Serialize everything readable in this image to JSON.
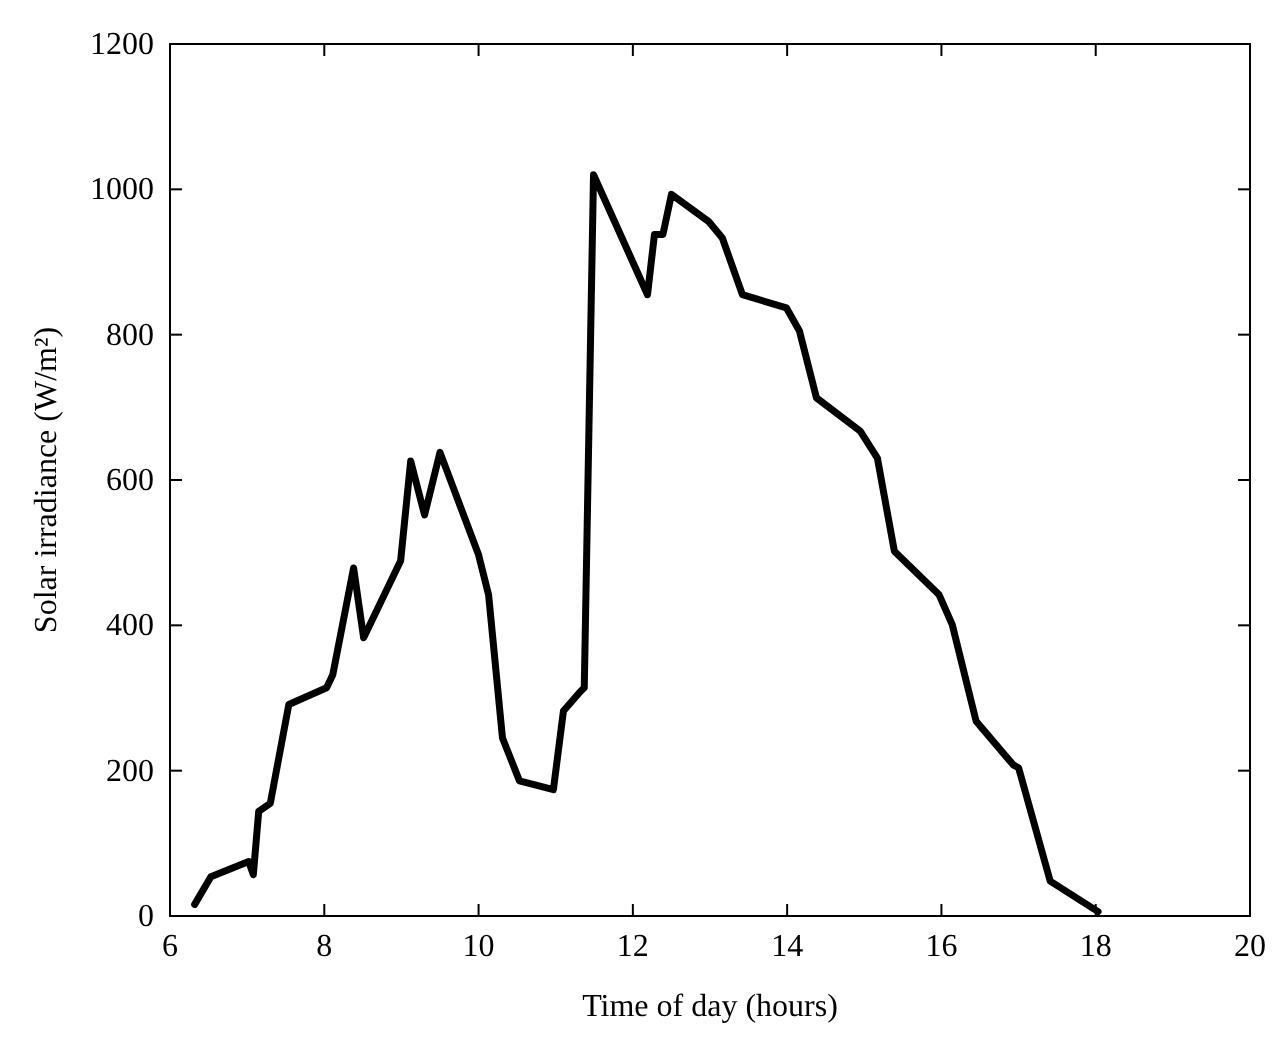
{
  "chart_data": {
    "type": "line",
    "xlabel": "Time of day (hours)",
    "ylabel": "Solar irradiance (W/m²)",
    "xlim": [
      6,
      20
    ],
    "ylim": [
      0,
      1200
    ],
    "xticks": [
      6,
      8,
      10,
      12,
      14,
      16,
      18,
      20
    ],
    "yticks": [
      0,
      200,
      400,
      600,
      800,
      1000,
      1200
    ],
    "grid": false,
    "marker": "none",
    "line_style": "solid",
    "series": [
      {
        "color": "#000000",
        "x": [
          6.32,
          6.53,
          7.02,
          7.08,
          7.15,
          7.3,
          7.54,
          8.03,
          8.11,
          8.38,
          8.51,
          8.99,
          9.12,
          9.3,
          9.5,
          10.0,
          10.13,
          10.31,
          10.53,
          10.97,
          11.1,
          11.32,
          11.37,
          11.49,
          12.19,
          12.28,
          12.39,
          12.5,
          12.98,
          13.16,
          13.42,
          13.99,
          14.16,
          14.38,
          14.95,
          15.17,
          15.39,
          15.97,
          16.14,
          16.45,
          16.93,
          17.0,
          17.41,
          18.03
        ],
        "values": [
          16,
          54,
          75,
          57,
          144,
          155,
          291,
          314,
          332,
          479,
          383,
          489,
          626,
          552,
          638,
          497,
          442,
          245,
          186,
          174,
          282,
          309,
          314,
          1020,
          855,
          938,
          938,
          993,
          956,
          933,
          855,
          837,
          805,
          713,
          667,
          630,
          502,
          442,
          401,
          268,
          208,
          204,
          48,
          6
        ]
      }
    ]
  }
}
